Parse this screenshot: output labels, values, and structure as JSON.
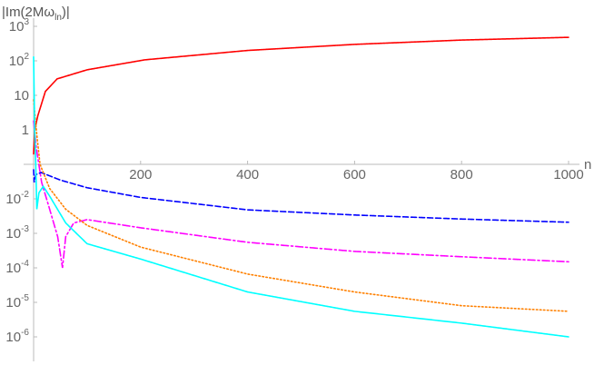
{
  "chart_data": {
    "type": "line",
    "title": "|Im(2Mω_ln)|",
    "title_parts": {
      "main": "|Im(2M",
      "omega": "ω",
      "sub": "ln",
      "close": ")|"
    },
    "xlabel": "n",
    "ylabel": "",
    "xlim": [
      0,
      1000
    ],
    "ylim": [
      3e-07,
      3000
    ],
    "yscale": "log",
    "x_axis_crosses_y_at": 0.1,
    "grid": false,
    "x_ticks": [
      {
        "value": 200,
        "label": "200"
      },
      {
        "value": 400,
        "label": "400"
      },
      {
        "value": 600,
        "label": "600"
      },
      {
        "value": 800,
        "label": "800"
      },
      {
        "value": 1000,
        "label": "1000"
      }
    ],
    "y_ticks": [
      {
        "value": 1000,
        "base": "10",
        "exp": "3"
      },
      {
        "value": 100,
        "base": "10",
        "exp": "2"
      },
      {
        "value": 10,
        "base": "10",
        "exp": ""
      },
      {
        "value": 1,
        "base": "1",
        "exp": ""
      },
      {
        "value": 0.01,
        "base": "10",
        "exp": "-2"
      },
      {
        "value": 0.001,
        "base": "10",
        "exp": "-3"
      },
      {
        "value": 0.0001,
        "base": "10",
        "exp": "-4"
      },
      {
        "value": 1e-05,
        "base": "10",
        "exp": "-5"
      },
      {
        "value": 1e-06,
        "base": "10",
        "exp": "-6"
      }
    ],
    "series": [
      {
        "color": "#ff0000",
        "style": "solid",
        "points": [
          [
            0,
            0.2
          ],
          [
            2,
            1
          ],
          [
            8,
            2.6
          ],
          [
            22,
            13
          ],
          [
            44,
            30
          ],
          [
            100,
            55
          ],
          [
            208,
            107
          ],
          [
            400,
            200
          ],
          [
            600,
            300
          ],
          [
            800,
            400
          ],
          [
            1000,
            480
          ]
        ]
      },
      {
        "color": "#0000ff",
        "style": "dashed",
        "points": [
          [
            0,
            0.07
          ],
          [
            1,
            0.03
          ],
          [
            4,
            0.05
          ],
          [
            14,
            0.058
          ],
          [
            50,
            0.035
          ],
          [
            100,
            0.021
          ],
          [
            200,
            0.011
          ],
          [
            400,
            0.0048
          ],
          [
            600,
            0.0034
          ],
          [
            800,
            0.0026
          ],
          [
            1000,
            0.0021
          ]
        ]
      },
      {
        "color": "#ff00ff",
        "style": "dashdot",
        "points": [
          [
            0,
            1.8
          ],
          [
            5,
            0.3
          ],
          [
            15,
            0.03
          ],
          [
            30,
            0.005
          ],
          [
            45,
            0.0008
          ],
          [
            54,
            0.0001
          ],
          [
            60,
            0.0008
          ],
          [
            75,
            0.002
          ],
          [
            100,
            0.0025
          ],
          [
            200,
            0.00145
          ],
          [
            400,
            0.00055
          ],
          [
            600,
            0.0003
          ],
          [
            800,
            0.00021
          ],
          [
            1000,
            0.00015
          ]
        ]
      },
      {
        "color": "#ff8000",
        "style": "dotted",
        "points": [
          [
            0,
            7.4
          ],
          [
            5,
            1
          ],
          [
            12,
            0.1
          ],
          [
            30,
            0.02
          ],
          [
            60,
            0.005
          ],
          [
            100,
            0.0017
          ],
          [
            200,
            0.0004
          ],
          [
            400,
            6.6e-05
          ],
          [
            600,
            2e-05
          ],
          [
            800,
            8e-06
          ],
          [
            1000,
            5.5e-06
          ]
        ]
      },
      {
        "color": "#00ffff",
        "style": "solid",
        "points": [
          [
            0,
            130
          ],
          [
            2,
            1
          ],
          [
            4,
            0.1
          ],
          [
            6,
            0.005
          ],
          [
            10,
            0.015
          ],
          [
            18,
            0.023
          ],
          [
            30,
            0.012
          ],
          [
            60,
            0.002
          ],
          [
            100,
            0.0005
          ],
          [
            200,
            0.00018
          ],
          [
            400,
            2e-05
          ],
          [
            600,
            5.5e-06
          ],
          [
            800,
            2.5e-06
          ],
          [
            1000,
            1e-06
          ]
        ]
      }
    ]
  }
}
